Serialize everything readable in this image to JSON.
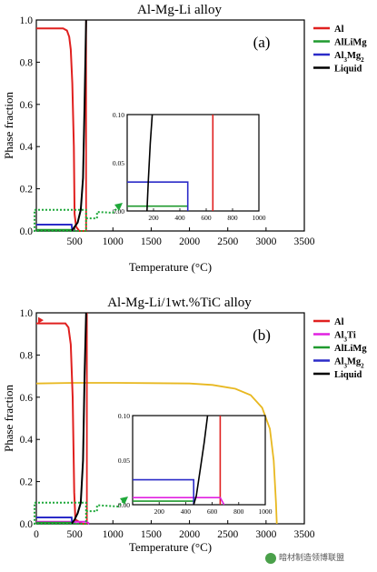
{
  "chart_data": [
    {
      "type": "line",
      "title": "Al-Mg-Li alloy",
      "panel_label": "(a)",
      "xlabel": "Temperature (°C)",
      "ylabel": "Phase fraction",
      "xlim": [
        0,
        3500
      ],
      "ylim": [
        0,
        1.0
      ],
      "xticks": [
        "500",
        "1000",
        "1500",
        "2000",
        "2500",
        "3000",
        "3500"
      ],
      "yticks": [
        "0.0",
        "0.2",
        "0.4",
        "0.6",
        "0.8",
        "1.0"
      ],
      "legend_position": "top-right",
      "series": [
        {
          "name": "Al",
          "color": "#e0201f",
          "points": [
            [
              0,
              0.96
            ],
            [
              250,
              0.96
            ],
            [
              350,
              0.96
            ],
            [
              400,
              0.95
            ],
            [
              430,
              0.92
            ],
            [
              450,
              0.86
            ],
            [
              470,
              0.7
            ],
            [
              490,
              0.4
            ],
            [
              500,
              0.08
            ],
            [
              520,
              0.02
            ],
            [
              560,
              0.0
            ],
            [
              650,
              0.0
            ]
          ],
          "vline": 650
        },
        {
          "name": "AlLiMg",
          "color": "#1f9a2e",
          "points": [
            [
              0,
              0.005
            ],
            [
              460,
              0.005
            ]
          ]
        },
        {
          "name": "Al₃Mg₂",
          "color": "#2b2bc8",
          "points": [
            [
              0,
              0.03
            ],
            [
              460,
              0.03
            ],
            [
              470,
              0.0
            ]
          ]
        },
        {
          "name": "Liquid",
          "color": "#000000",
          "points": [
            [
              460,
              0.0
            ],
            [
              500,
              0.02
            ],
            [
              540,
              0.04
            ],
            [
              580,
              0.1
            ],
            [
              610,
              0.25
            ],
            [
              630,
              0.6
            ],
            [
              650,
              1.0
            ]
          ]
        }
      ],
      "inset": {
        "xlim": [
          0,
          1000
        ],
        "ylim": [
          0,
          0.1
        ],
        "xticks": [
          "200",
          "400",
          "600",
          "800",
          "1000"
        ],
        "yticks": [
          "0.00",
          "0.05",
          "0.10"
        ],
        "series": [
          {
            "color": "#e0201f",
            "points": [
              [
                650,
                0
              ],
              [
                650,
                0.1
              ]
            ]
          },
          {
            "color": "#1f9a2e",
            "points": [
              [
                0,
                0.005
              ],
              [
                460,
                0.005
              ]
            ]
          },
          {
            "color": "#2b2bc8",
            "points": [
              [
                0,
                0.03
              ],
              [
                460,
                0.03
              ],
              [
                460,
                0
              ]
            ]
          },
          {
            "color": "#000000",
            "points": [
              [
                150,
                0
              ],
              [
                160,
                0.03
              ],
              [
                175,
                0.07
              ],
              [
                190,
                0.1
              ]
            ]
          }
        ]
      }
    },
    {
      "type": "line",
      "title": "Al-Mg-Li/1wt.%TiC alloy",
      "panel_label": "(b)",
      "xlabel": "Temperature (°C)",
      "ylabel": "Phase fraction",
      "xlim": [
        0,
        3500
      ],
      "ylim": [
        0,
        1.0
      ],
      "xticks": [
        "0",
        "500",
        "1000",
        "1500",
        "2000",
        "2500",
        "3000",
        "3500"
      ],
      "yticks": [
        "0.0",
        "0.2",
        "0.4",
        "0.6",
        "0.8",
        "1.0"
      ],
      "legend_position": "top-right",
      "series": [
        {
          "name": "Al",
          "color": "#e0201f",
          "points": [
            [
              0,
              0.95
            ],
            [
              200,
              0.95
            ],
            [
              380,
              0.95
            ],
            [
              420,
              0.93
            ],
            [
              450,
              0.85
            ],
            [
              475,
              0.6
            ],
            [
              495,
              0.15
            ],
            [
              510,
              0.02
            ],
            [
              600,
              0.0
            ],
            [
              660,
              0.0
            ]
          ],
          "vline": 660
        },
        {
          "name": "Al₃Ti",
          "color": "#e020e0",
          "points": [
            [
              0,
              0.01
            ],
            [
              660,
              0.01
            ],
            [
              690,
              0.0
            ]
          ]
        },
        {
          "name": "AlLiMg",
          "color": "#1f9a2e",
          "points": [
            [
              0,
              0.005
            ],
            [
              460,
              0.005
            ]
          ]
        },
        {
          "name": "Al₃Mg₂",
          "color": "#2b2bc8",
          "points": [
            [
              0,
              0.03
            ],
            [
              460,
              0.03
            ],
            [
              470,
              0.0
            ]
          ]
        },
        {
          "name": "Liquid",
          "color": "#000000",
          "points": [
            [
              460,
              0.0
            ],
            [
              500,
              0.02
            ],
            [
              540,
              0.05
            ],
            [
              580,
              0.1
            ],
            [
              610,
              0.3
            ],
            [
              630,
              0.7
            ],
            [
              650,
              1.0
            ]
          ]
        }
      ],
      "extra_series": {
        "color": "#e8b820",
        "points": [
          [
            0,
            0.665
          ],
          [
            500,
            0.668
          ],
          [
            1000,
            0.668
          ],
          [
            1500,
            0.667
          ],
          [
            2000,
            0.665
          ],
          [
            2300,
            0.658
          ],
          [
            2600,
            0.64
          ],
          [
            2800,
            0.61
          ],
          [
            2950,
            0.55
          ],
          [
            3050,
            0.45
          ],
          [
            3100,
            0.3
          ],
          [
            3130,
            0.1
          ],
          [
            3140,
            0.0
          ]
        ]
      },
      "inset": {
        "xlim": [
          0,
          1000
        ],
        "ylim": [
          0,
          0.1
        ],
        "xticks": [
          "200",
          "400",
          "600",
          "800",
          "1000"
        ],
        "yticks": [
          "0.00",
          "0.05",
          "0.10"
        ],
        "series": [
          {
            "color": "#e0201f",
            "points": [
              [
                660,
                0
              ],
              [
                660,
                0.1
              ]
            ]
          },
          {
            "color": "#e020e0",
            "points": [
              [
                0,
                0.008
              ],
              [
                660,
                0.008
              ],
              [
                690,
                0
              ]
            ]
          },
          {
            "color": "#1f9a2e",
            "points": [
              [
                0,
                0.004
              ],
              [
                460,
                0.004
              ]
            ]
          },
          {
            "color": "#2b2bc8",
            "points": [
              [
                0,
                0.028
              ],
              [
                460,
                0.028
              ],
              [
                460,
                0
              ]
            ]
          },
          {
            "color": "#000000",
            "points": [
              [
                460,
                0
              ],
              [
                480,
                0.01
              ],
              [
                510,
                0.04
              ],
              [
                540,
                0.07
              ],
              [
                565,
                0.1
              ]
            ]
          }
        ]
      }
    }
  ],
  "watermark": "暗材制造领博联盟"
}
